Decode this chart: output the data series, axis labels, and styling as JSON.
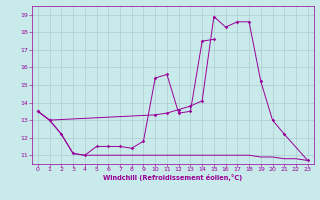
{
  "xlabel": "Windchill (Refroidissement éolien,°C)",
  "bg_color": "#c8eaea",
  "line_color": "#990099",
  "grid_color": "#aacccc",
  "xlim": [
    -0.5,
    23.5
  ],
  "ylim": [
    10.5,
    19.5
  ],
  "yticks": [
    11,
    12,
    13,
    14,
    15,
    16,
    17,
    18,
    19
  ],
  "xticks": [
    0,
    1,
    2,
    3,
    4,
    5,
    6,
    7,
    8,
    9,
    10,
    11,
    12,
    13,
    14,
    15,
    16,
    17,
    18,
    19,
    20,
    21,
    22,
    23
  ],
  "series": [
    {
      "x": [
        0,
        1,
        2,
        3,
        4,
        5,
        6,
        7,
        8,
        9,
        10,
        11,
        12,
        13,
        14,
        15
      ],
      "y": [
        13.5,
        13.0,
        12.2,
        11.1,
        11.0,
        11.5,
        11.5,
        11.5,
        11.4,
        11.8,
        15.4,
        15.6,
        13.4,
        13.5,
        17.5,
        17.6
      ],
      "marker": true
    },
    {
      "x": [
        0,
        1,
        10,
        11,
        12,
        13,
        14,
        15,
        16,
        17,
        18,
        19,
        20,
        21,
        23
      ],
      "y": [
        13.5,
        13.0,
        13.3,
        13.4,
        13.6,
        13.8,
        14.1,
        18.9,
        18.3,
        18.6,
        18.6,
        15.2,
        13.0,
        12.2,
        10.7
      ],
      "marker": true
    },
    {
      "x": [
        0,
        1,
        2,
        3,
        4,
        5,
        6,
        7,
        8,
        9,
        10,
        11,
        12,
        13,
        14,
        15,
        16,
        17,
        18,
        19,
        20,
        21,
        22,
        23
      ],
      "y": [
        13.5,
        13.0,
        12.2,
        11.1,
        11.0,
        11.0,
        11.0,
        11.0,
        11.0,
        11.0,
        11.0,
        11.0,
        11.0,
        11.0,
        11.0,
        11.0,
        11.0,
        11.0,
        11.0,
        10.9,
        10.9,
        10.8,
        10.8,
        10.7
      ],
      "marker": false
    }
  ]
}
